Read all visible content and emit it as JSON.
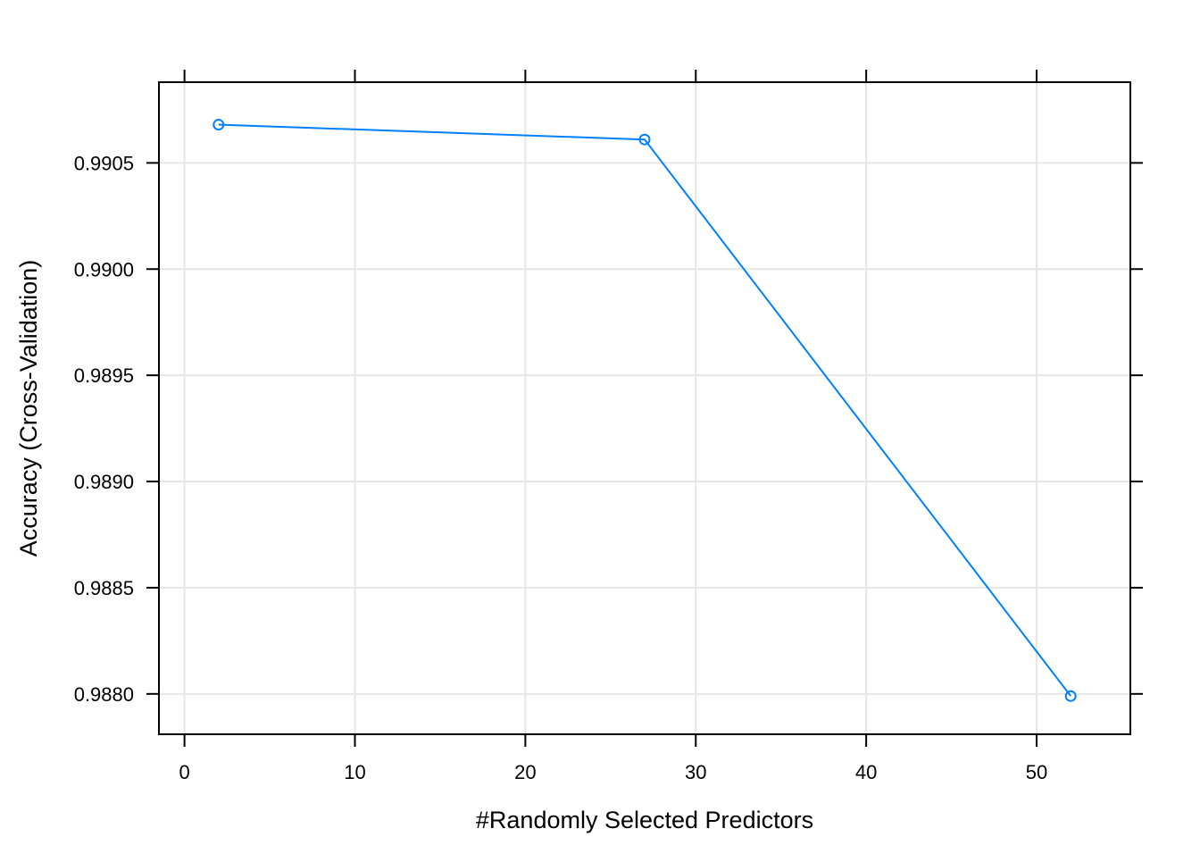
{
  "chart_data": {
    "type": "line",
    "title": "",
    "xlabel": "#Randomly Selected Predictors",
    "ylabel": "Accuracy (Cross-Validation)",
    "x": [
      2,
      27,
      52
    ],
    "series": [
      {
        "values": [
          0.99068,
          0.99061,
          0.98799
        ],
        "color": "#0080ff",
        "marker": "open-circle"
      }
    ],
    "xlim": [
      -1.5,
      55.5
    ],
    "ylim": [
      0.98781,
      0.99088
    ],
    "xticks": [
      0,
      10,
      20,
      30,
      40,
      50
    ],
    "xtick_labels": [
      "0",
      "10",
      "20",
      "30",
      "40",
      "50"
    ],
    "yticks": [
      0.988,
      0.9885,
      0.989,
      0.9895,
      0.99,
      0.9905
    ],
    "ytick_labels": [
      "0.9880",
      "0.9885",
      "0.9890",
      "0.9895",
      "0.9900",
      "0.9905"
    ],
    "grid": true,
    "grid_color": "#e6e6e6",
    "legend": "none"
  }
}
